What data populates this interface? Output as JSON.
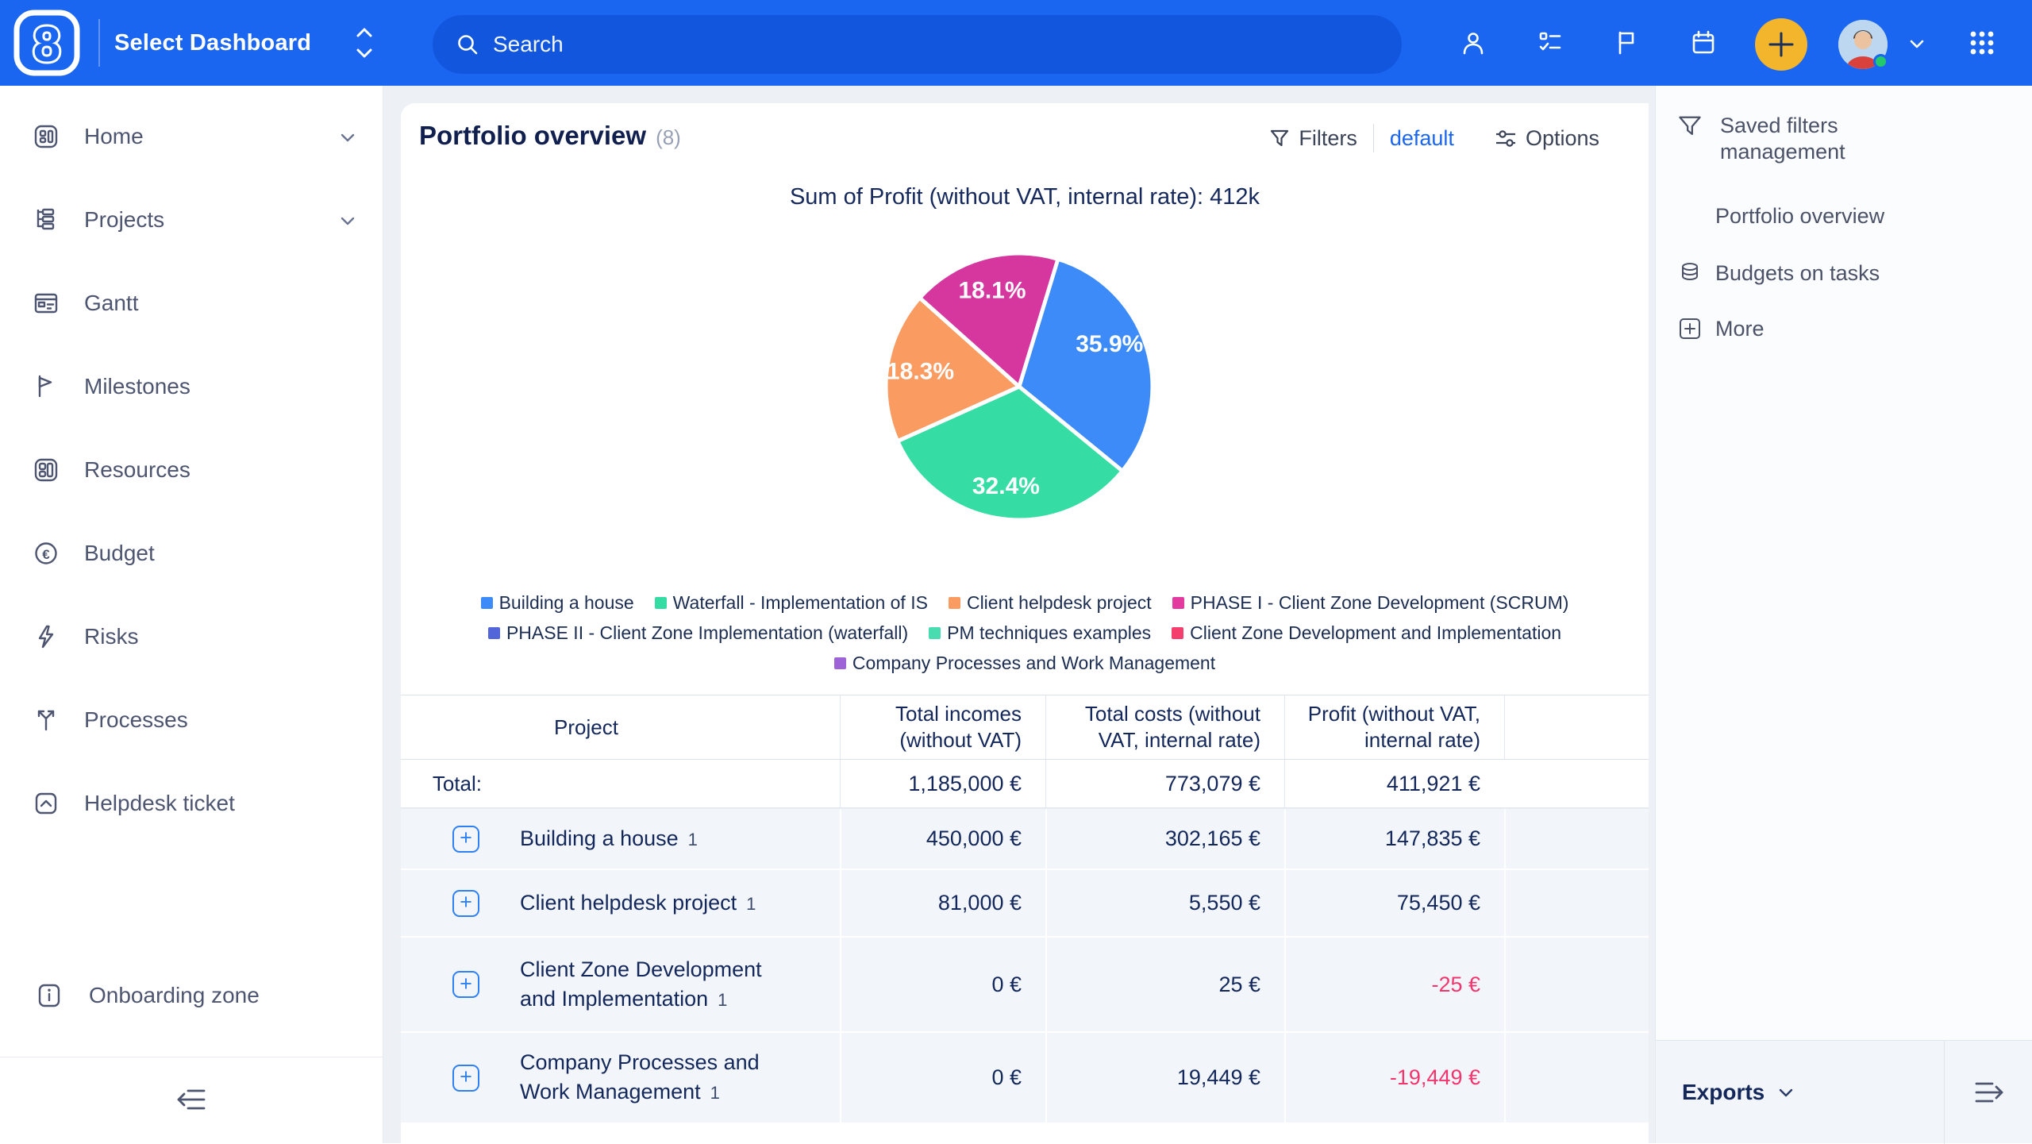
{
  "topbar": {
    "logo_text": "8",
    "dashboard_selector_label": "Select Dashboard",
    "search_placeholder": "Search",
    "colors": {
      "bar": "#1b66f0",
      "search_pill": "#1156dd",
      "accent_yellow": "#f2b52b"
    }
  },
  "sidebar": {
    "items": [
      {
        "label": "Home"
      },
      {
        "label": "Projects"
      },
      {
        "label": "Gantt"
      },
      {
        "label": "Milestones"
      },
      {
        "label": "Resources"
      },
      {
        "label": "Budget"
      },
      {
        "label": "Risks"
      },
      {
        "label": "Processes"
      },
      {
        "label": "Helpdesk ticket"
      }
    ],
    "onboarding_label": "Onboarding zone"
  },
  "main": {
    "title": "Portfolio overview",
    "count_badge": "(8)",
    "toolbar": {
      "filters_label": "Filters",
      "active_filter": "default",
      "options_label": "Options"
    },
    "chart_data": {
      "type": "pie",
      "title": "Sum of Profit (without VAT, internal rate): 412k",
      "slices": [
        {
          "label": "Building a house",
          "percent": 35.9,
          "display": "35.9%",
          "color": "#3d8bf8"
        },
        {
          "label": "Waterfall - Implementation of IS",
          "percent": 32.4,
          "display": "32.4%",
          "color": "#35dda4"
        },
        {
          "label": "Client helpdesk project",
          "percent": 18.3,
          "display": "18.3%",
          "color": "#fa9b61"
        },
        {
          "label": "PHASE I - Client Zone Development (SCRUM)",
          "percent": 18.1,
          "display": "18.1%",
          "color": "#d6379f"
        }
      ],
      "legend_rows": [
        [
          {
            "label": "Building a house",
            "color": "#3d8bf8"
          },
          {
            "label": "Waterfall - Implementation of IS",
            "color": "#35dda4"
          },
          {
            "label": "Client helpdesk project",
            "color": "#fa9b61"
          },
          {
            "label": "PHASE I - Client Zone Development (SCRUM)",
            "color": "#e23a9f"
          }
        ],
        [
          {
            "label": "PHASE II - Client Zone Implementation (waterfall)",
            "color": "#5266d9"
          },
          {
            "label": "PM techniques examples",
            "color": "#49dcb1"
          },
          {
            "label": "Client Zone Development and Implementation",
            "color": "#f43f6e"
          }
        ],
        [
          {
            "label": "Company Processes and Work Management",
            "color": "#9f63d8"
          }
        ]
      ],
      "legend_position": "bottom"
    },
    "table": {
      "columns": [
        "Project",
        "Total incomes (without VAT)",
        "Total costs (without VAT, internal rate)",
        "Profit (without VAT, internal rate)"
      ],
      "total_row": {
        "label": "Total:",
        "incomes": "1,185,000 €",
        "costs": "773,079 €",
        "profit": "411,921 €"
      },
      "rows": [
        {
          "name": "Building a house",
          "count": "1",
          "incomes": "450,000 €",
          "costs": "302,165 €",
          "profit": "147,835 €"
        },
        {
          "name": "Client helpdesk project",
          "count": "1",
          "incomes": "81,000 €",
          "costs": "5,550 €",
          "profit": "75,450 €"
        },
        {
          "name": "Client Zone Development and Implementation",
          "count": "1",
          "incomes": "0 €",
          "costs": "25 €",
          "profit": "-25 €"
        },
        {
          "name": "Company Processes and Work Management",
          "count": "1",
          "incomes": "0 €",
          "costs": "19,449 €",
          "profit": "-19,449 €"
        }
      ],
      "negative_color": "#f2356d"
    }
  },
  "right_panel": {
    "title": "Saved filters management",
    "items": [
      {
        "label": "Portfolio overview"
      },
      {
        "label": "Budgets on tasks"
      },
      {
        "label": "More"
      }
    ],
    "exports_label": "Exports"
  }
}
